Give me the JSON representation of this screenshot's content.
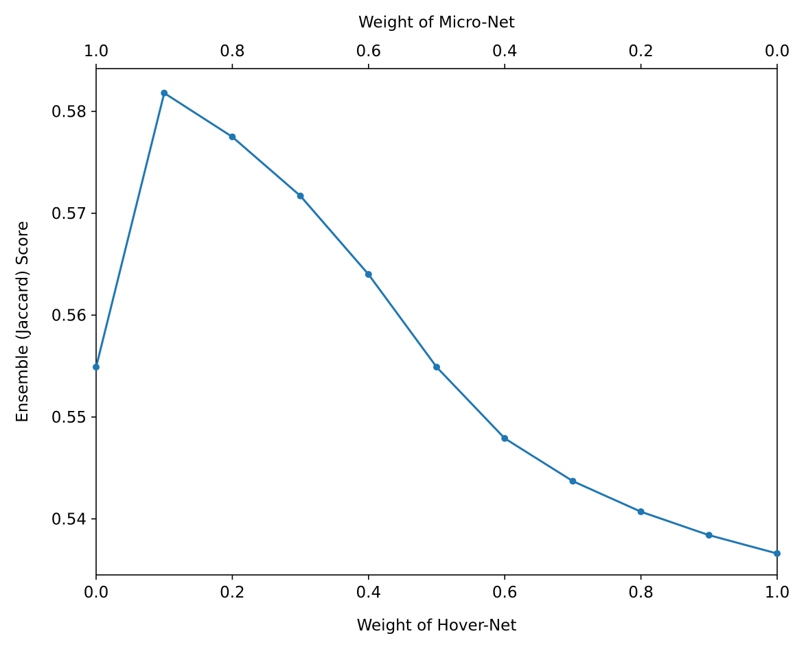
{
  "chart_data": {
    "type": "line",
    "title": "",
    "xlabel": "Weight of Hover-Net",
    "x2label": "Weight of Micro-Net",
    "ylabel": "Ensemble (Jaccard) Score",
    "xlim": [
      0.0,
      1.0
    ],
    "ylim": [
      0.5345,
      0.5842
    ],
    "x_ticks": [
      0.0,
      0.2,
      0.4,
      0.6,
      0.8,
      1.0
    ],
    "x_tick_labels": [
      "0.0",
      "0.2",
      "0.4",
      "0.6",
      "0.8",
      "1.0"
    ],
    "x2_ticks": [
      1.0,
      0.8,
      0.6,
      0.4,
      0.2,
      0.0
    ],
    "x2_tick_labels": [
      "1.0",
      "0.8",
      "0.6",
      "0.4",
      "0.2",
      "0.0"
    ],
    "y_ticks": [
      0.54,
      0.55,
      0.56,
      0.57,
      0.58
    ],
    "y_tick_labels": [
      "0.54",
      "0.55",
      "0.56",
      "0.57",
      "0.58"
    ],
    "grid": false,
    "legend": "none",
    "colors": {
      "series": "#1f77b4",
      "axes": "#000000"
    },
    "series": [
      {
        "x": [
          0.0,
          0.1,
          0.2,
          0.3,
          0.4,
          0.5,
          0.6,
          0.7,
          0.8,
          0.9,
          1.0
        ],
        "values": [
          0.5549,
          0.5818,
          0.5775,
          0.5717,
          0.564,
          0.5549,
          0.5479,
          0.5437,
          0.5407,
          0.5384,
          0.5366
        ]
      }
    ]
  }
}
